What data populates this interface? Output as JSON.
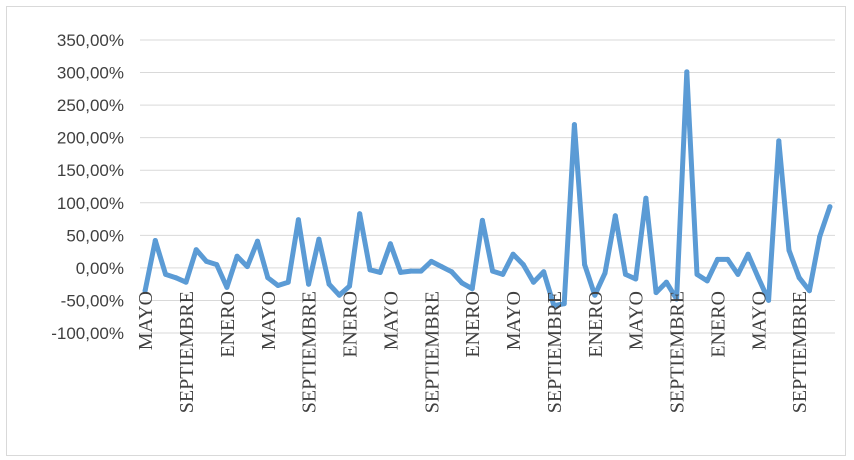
{
  "chart_data": {
    "type": "line",
    "title": "",
    "xlabel": "",
    "ylabel": "",
    "ylim": [
      -100,
      350
    ],
    "y_ticks": [
      "350,00%",
      "300,00%",
      "250,00%",
      "200,00%",
      "150,00%",
      "100,00%",
      "50,00%",
      "0,00%",
      "-50,00%",
      "-100,00%"
    ],
    "x_tick_labels": [
      {
        "index": 0,
        "label": "MAYO"
      },
      {
        "index": 4,
        "label": "SEPTIEMBRE"
      },
      {
        "index": 8,
        "label": "ENERO"
      },
      {
        "index": 12,
        "label": "MAYO"
      },
      {
        "index": 16,
        "label": "SEPTIEMBRE"
      },
      {
        "index": 20,
        "label": "ENERO"
      },
      {
        "index": 24,
        "label": "MAYO"
      },
      {
        "index": 28,
        "label": "SEPTIEMBRE"
      },
      {
        "index": 32,
        "label": "ENERO"
      },
      {
        "index": 36,
        "label": "MAYO"
      },
      {
        "index": 40,
        "label": "SEPTIEMBRE"
      },
      {
        "index": 44,
        "label": "ENERO"
      },
      {
        "index": 48,
        "label": "MAYO"
      },
      {
        "index": 52,
        "label": "SEPTIEMBRE"
      },
      {
        "index": 56,
        "label": "ENERO"
      },
      {
        "index": 60,
        "label": "MAYO"
      },
      {
        "index": 64,
        "label": "SEPTIEMBRE"
      }
    ],
    "grid": true,
    "legend": "none",
    "series_color": "#5b9bd5",
    "values": [
      -35,
      42,
      -10,
      -15,
      -22,
      28,
      10,
      5,
      -30,
      18,
      2,
      41,
      -15,
      -27,
      -22,
      74,
      -25,
      44,
      -25,
      -42,
      -28,
      83,
      -3,
      -7,
      37,
      -7,
      -5,
      -5,
      10,
      2,
      -6,
      -23,
      -32,
      73,
      -5,
      -10,
      21,
      5,
      -22,
      -6,
      -58,
      -55,
      220,
      5,
      -42,
      -8,
      80,
      -10,
      -17,
      107,
      -38,
      -22,
      -48,
      301,
      -10,
      -20,
      13,
      13,
      -10,
      21,
      -15,
      -50,
      195,
      27,
      -15,
      -35,
      48,
      94
    ],
    "x_categories_count": 68
  }
}
